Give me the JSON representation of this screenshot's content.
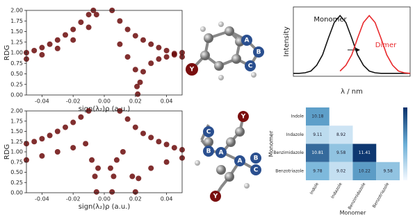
{
  "chart_data": [
    {
      "type": "scatter",
      "xlabel": "sign(λ₂)ρ (a.u.)",
      "ylabel": "RDG",
      "color": "#6b0a0a",
      "xlim": [
        -0.05,
        0.05
      ],
      "ylim": [
        0,
        2
      ],
      "xticks": [
        -0.04,
        -0.02,
        {
          "value": 0,
          "label": "0.00"
        },
        0.02,
        0.04
      ],
      "yticks": [
        {
          "value": 0,
          "label": "0.00"
        },
        0.25,
        {
          "value": 0.5,
          "label": "0.50"
        },
        0.75,
        {
          "value": 1,
          "label": "1.00"
        },
        1.25,
        {
          "value": 1.5,
          "label": "1.50"
        },
        1.75,
        {
          "value": 2,
          "label": "2.00"
        }
      ],
      "x": [
        -0.05,
        -0.045,
        -0.04,
        -0.035,
        -0.03,
        -0.025,
        -0.02,
        -0.015,
        -0.01,
        -0.007,
        -0.05,
        -0.04,
        -0.03,
        -0.02,
        -0.01,
        -0.005,
        0.005,
        0.01,
        0.015,
        0.02,
        0.025,
        0.03,
        0.035,
        0.04,
        0.045,
        0.05,
        0.02,
        0.021,
        0.0215,
        0.023,
        0.025,
        0.03,
        0.035,
        0.04,
        0.045,
        0.05,
        0.015,
        0.01
      ],
      "y": [
        1.0,
        1.05,
        1.12,
        1.2,
        1.3,
        1.42,
        1.55,
        1.72,
        1.9,
        2.0,
        0.85,
        0.95,
        1.1,
        1.3,
        1.6,
        1.9,
        2.0,
        1.75,
        1.55,
        1.4,
        1.3,
        1.2,
        1.12,
        1.05,
        0.98,
        0.9,
        0.6,
        0.2,
        0.02,
        0.3,
        0.55,
        0.75,
        0.85,
        0.9,
        0.95,
        1.0,
        0.9,
        1.2
      ]
    },
    {
      "type": "scatter",
      "xlabel": "sign(λ₂)ρ (a.u.)",
      "ylabel": "RDG",
      "color": "#6b0a0a",
      "xlim": [
        -0.05,
        0.05
      ],
      "ylim": [
        0,
        2
      ],
      "xticks": [
        -0.04,
        -0.02,
        {
          "value": 0,
          "label": "0.00"
        },
        0.02,
        0.04
      ],
      "yticks": [
        {
          "value": 0,
          "label": "0.00"
        },
        0.25,
        {
          "value": 0.5,
          "label": "0.50"
        },
        0.75,
        {
          "value": 1,
          "label": "1.00"
        },
        1.25,
        {
          "value": 1.5,
          "label": "1.50"
        },
        1.75,
        {
          "value": 2,
          "label": "2.00"
        }
      ],
      "x": [
        -0.05,
        -0.045,
        -0.04,
        -0.035,
        -0.03,
        -0.025,
        -0.02,
        -0.015,
        -0.01,
        -0.05,
        -0.04,
        -0.03,
        -0.02,
        -0.012,
        -0.008,
        -0.006,
        -0.005,
        -0.004,
        0.004,
        0.005,
        0.006,
        0.008,
        0.01,
        0.015,
        0.02,
        0.025,
        0.03,
        0.035,
        0.04,
        0.045,
        0.05,
        0.018,
        0.02,
        0.022,
        0.03,
        0.04,
        0.05,
        0.012
      ],
      "y": [
        1.2,
        1.25,
        1.32,
        1.4,
        1.5,
        1.6,
        1.72,
        1.85,
        2.0,
        0.8,
        0.9,
        1.0,
        1.1,
        1.2,
        0.8,
        0.4,
        0.02,
        0.6,
        0.6,
        0.02,
        0.4,
        0.8,
        2.0,
        1.8,
        1.6,
        1.45,
        1.35,
        1.25,
        1.18,
        1.1,
        1.05,
        0.4,
        0.02,
        0.35,
        0.6,
        0.75,
        0.85,
        1.0
      ]
    },
    {
      "type": "line",
      "xlabel": "λ / nm",
      "ylabel": "Intensity",
      "xlim": [
        0,
        20
      ],
      "ylim": [
        -0.05,
        1.15
      ],
      "x": [
        0,
        1,
        2,
        3,
        4,
        5,
        6,
        7,
        8,
        9,
        10,
        11,
        12,
        13,
        14,
        15,
        16,
        17,
        18,
        19,
        20
      ],
      "series": [
        {
          "name": "Monomer",
          "color": "#111111",
          "values": [
            0,
            0,
            0.01,
            0.04,
            0.14,
            0.32,
            0.61,
            0.88,
            1.0,
            0.88,
            0.61,
            0.32,
            0.14,
            0.04,
            0.01,
            0,
            0,
            0,
            0,
            0,
            0
          ]
        },
        {
          "name": "Dimer",
          "color": "#e8282b",
          "values": [
            null,
            null,
            null,
            null,
            null,
            null,
            null,
            null,
            0.04,
            0.14,
            0.32,
            0.61,
            0.88,
            1.0,
            0.88,
            0.61,
            0.32,
            0.14,
            0.04,
            0.01,
            0
          ]
        }
      ]
    },
    {
      "type": "heatmap",
      "xlabel": "Monomer",
      "ylabel": "Monomer",
      "rows": [
        "Indole",
        "Indazole",
        "Benzimidazole",
        "Benzotriazole"
      ],
      "columns": [
        "Indole",
        "Indazole",
        "Benzimidazole",
        "Benzotriazole"
      ],
      "zlim": [
        8.5,
        11.5
      ],
      "values": [
        [
          10.18,
          null,
          null,
          null
        ],
        [
          9.11,
          8.92,
          null,
          null
        ],
        [
          10.81,
          9.58,
          11.41,
          null
        ],
        [
          9.78,
          9.02,
          10.22,
          9.58
        ]
      ]
    }
  ],
  "molecules": [
    {
      "labels": [
        "A",
        "B",
        "C",
        "Y"
      ]
    },
    {
      "labels": [
        "Y",
        "C",
        "B",
        "A",
        "A",
        "B",
        "C",
        "Y"
      ]
    }
  ]
}
